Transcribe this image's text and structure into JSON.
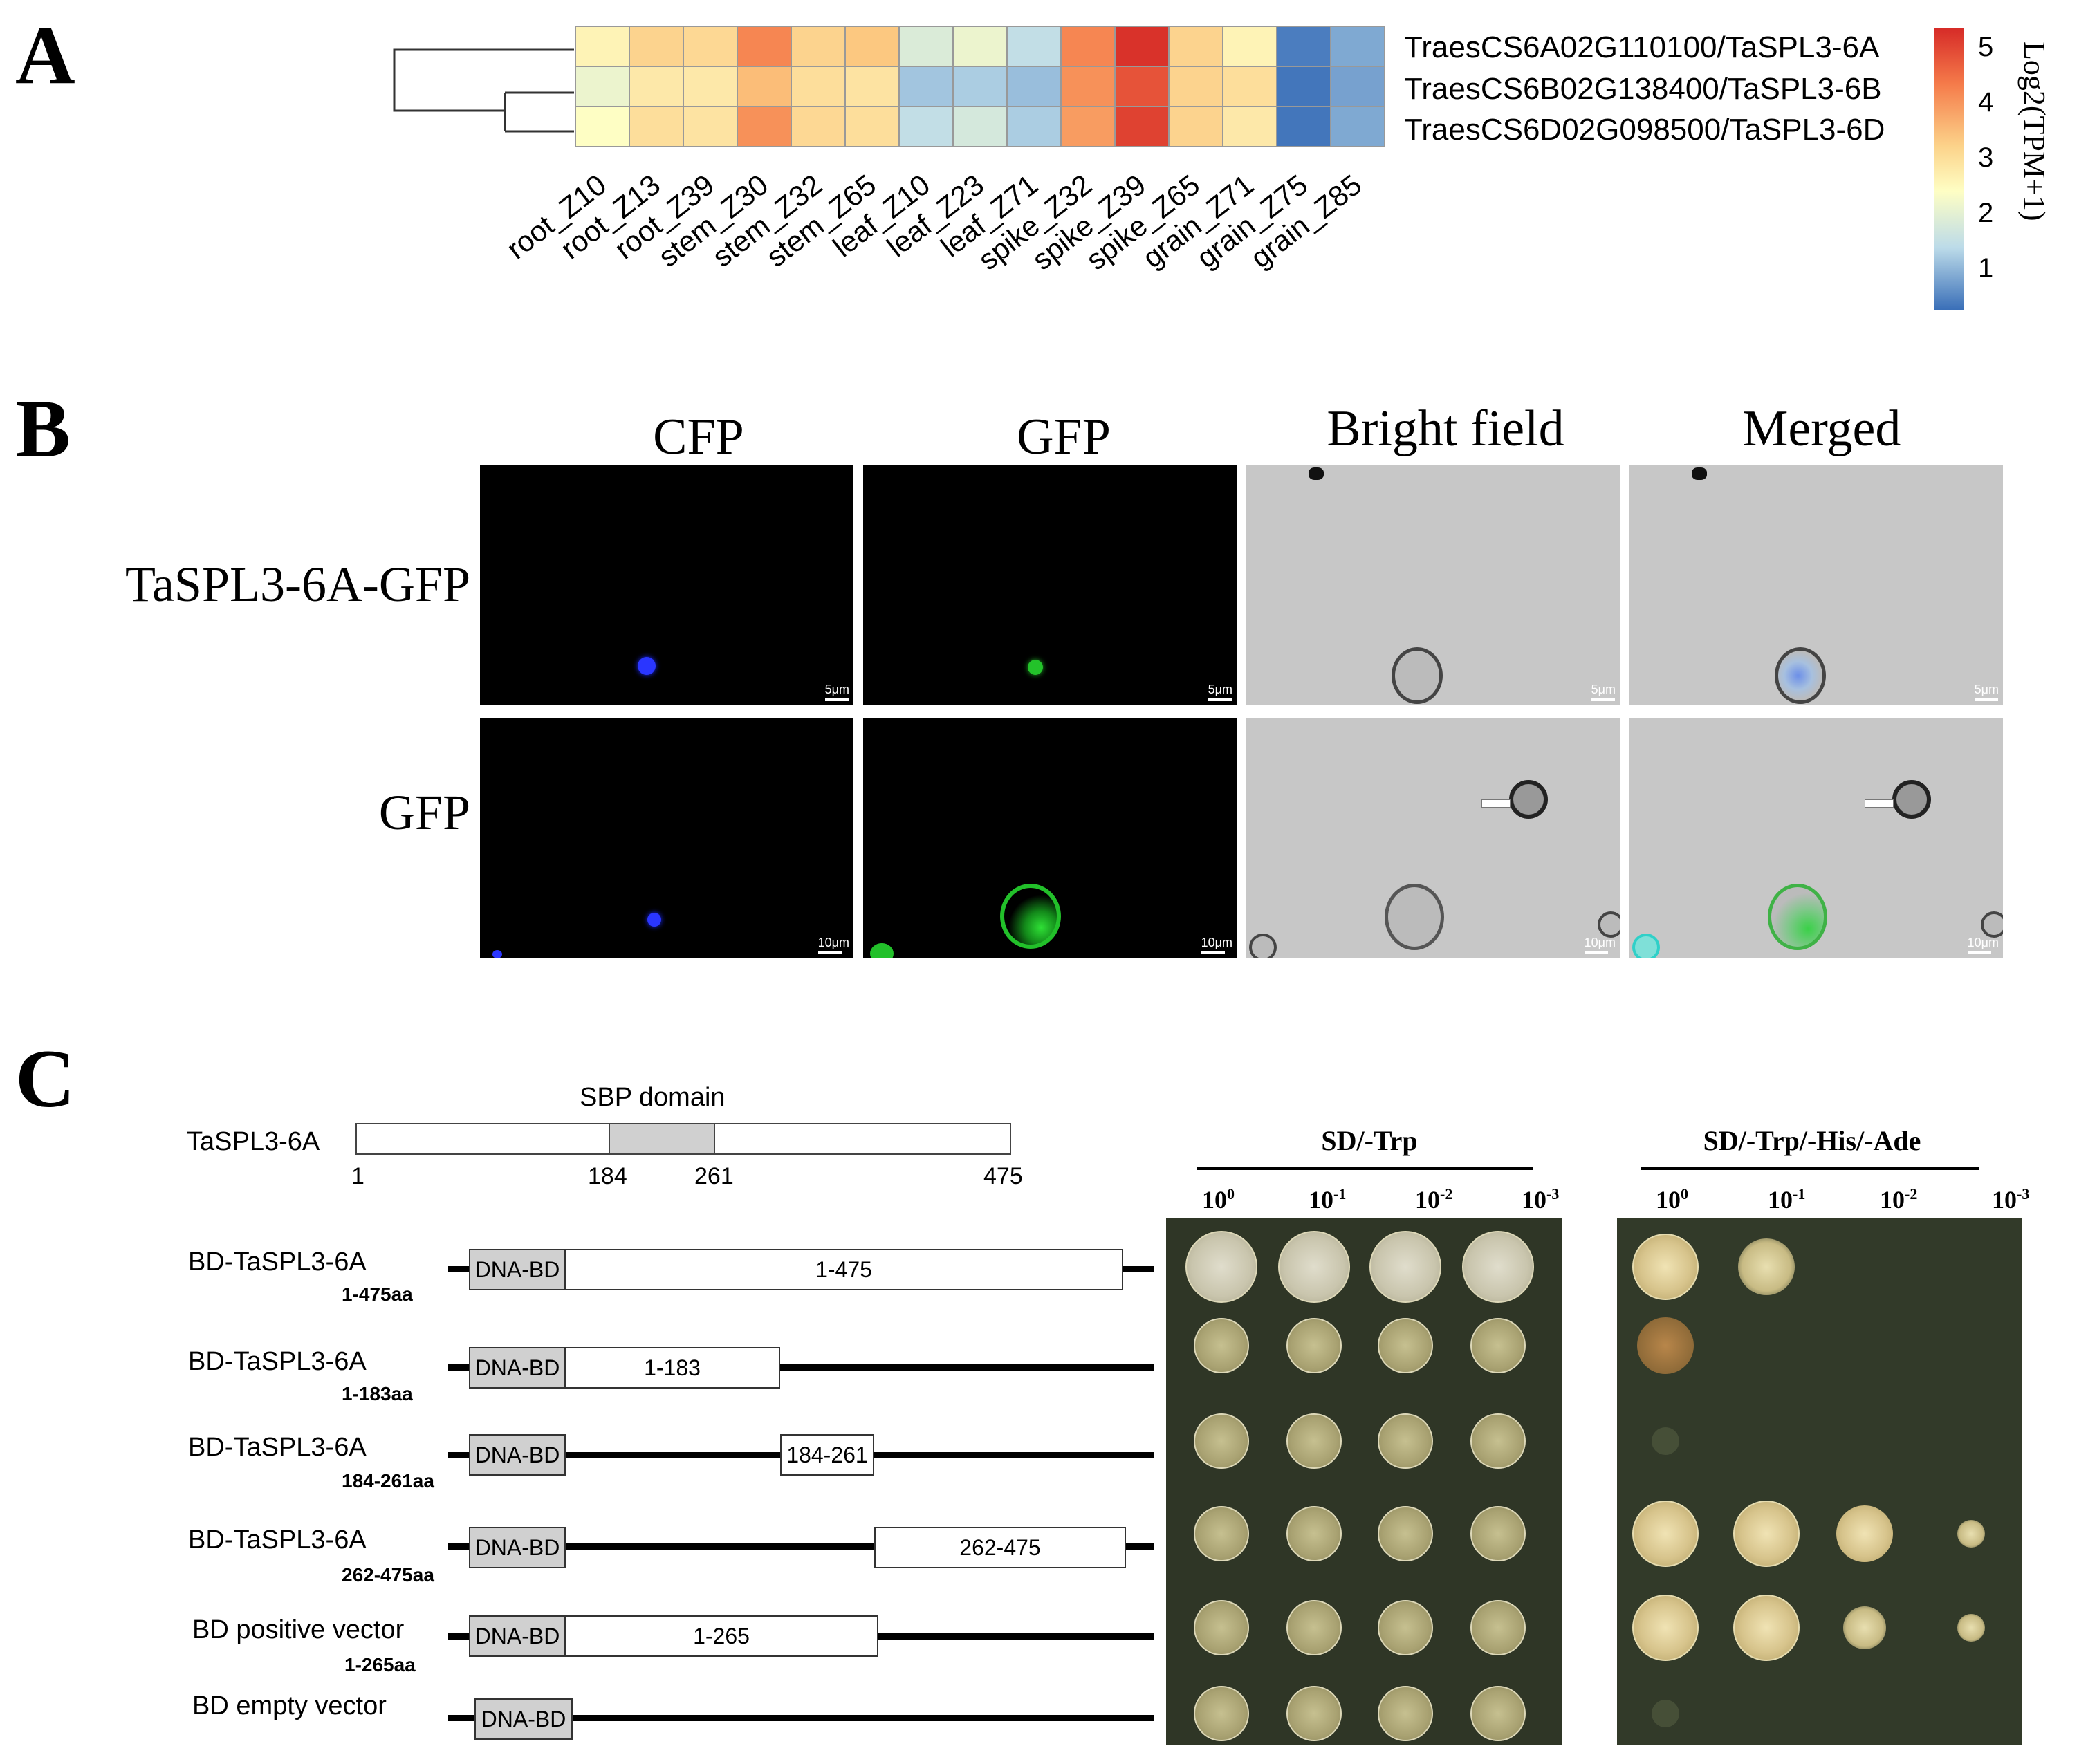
{
  "panels": {
    "a": "A",
    "b": "B",
    "c": "C"
  },
  "heatmap": {
    "columns": [
      "root_Z10",
      "root_Z13",
      "root_Z39",
      "stem_Z30",
      "stem_Z32",
      "stem_Z65",
      "leaf_Z10",
      "leaf_Z23",
      "leaf_Z71",
      "spike_Z32",
      "spike_Z39",
      "spike_Z65",
      "grain_Z71",
      "grain_Z75",
      "grain_Z85"
    ],
    "genes": [
      "TraesCS6A02G110100/TaSPL3-6A",
      "TraesCS6B02G138400/TaSPL3-6B",
      "TraesCS6D02G098500/TaSPL3-6D"
    ],
    "values": [
      [
        2.8,
        3.4,
        3.3,
        4.2,
        3.4,
        3.6,
        2.0,
        2.3,
        1.6,
        4.2,
        5.2,
        3.4,
        2.8,
        0.2,
        0.8
      ],
      [
        2.3,
        3.0,
        3.0,
        3.7,
        3.2,
        3.1,
        1.2,
        1.3,
        1.1,
        4.1,
        4.8,
        3.4,
        3.2,
        0.1,
        0.7
      ],
      [
        2.6,
        3.2,
        3.1,
        4.1,
        3.3,
        3.2,
        1.6,
        1.9,
        1.3,
        4.0,
        5.0,
        3.4,
        3.0,
        0.1,
        0.8
      ]
    ],
    "colorbar": {
      "title": "Log2(TPM+1)",
      "ticks": [
        "5",
        "4",
        "3",
        "2",
        "1"
      ],
      "low": "#3a6fb8",
      "mid": "#fefec4",
      "high": "#d62a27"
    }
  },
  "microscopy": {
    "columns": [
      "CFP",
      "GFP",
      "Bright field",
      "Merged"
    ],
    "rows": [
      {
        "label": "TaSPL3-6A-GFP",
        "scale": "5μm"
      },
      {
        "label": "GFP",
        "scale": "10μm"
      }
    ]
  },
  "domain": {
    "protein": "TaSPL3-6A",
    "domain_label": "SBP domain",
    "positions": [
      "1",
      "184",
      "261",
      "475"
    ]
  },
  "constructs": [
    {
      "name": "BD-TaSPL3-6A",
      "range": "1-475aa",
      "dbd": "DNA-BD",
      "fragment": "1-475"
    },
    {
      "name": "BD-TaSPL3-6A",
      "range": "1-183aa",
      "dbd": "DNA-BD",
      "fragment": "1-183"
    },
    {
      "name": "BD-TaSPL3-6A",
      "range": "184-261aa",
      "dbd": "DNA-BD",
      "fragment": "184-261"
    },
    {
      "name": "BD-TaSPL3-6A",
      "range": "262-475aa",
      "dbd": "DNA-BD",
      "fragment": "262-475"
    },
    {
      "name": "BD positive vector",
      "range": "1-265aa",
      "dbd": "DNA-BD",
      "fragment": "1-265"
    },
    {
      "name": "BD empty vector",
      "range": "",
      "dbd": "DNA-BD",
      "fragment": ""
    }
  ],
  "plates": {
    "left_title": "SD/-Trp",
    "right_title": "SD/-Trp/-His/-Ade",
    "dilution_base": "10",
    "dilution_exponents": [
      "0",
      "-1",
      "-2",
      "-3"
    ],
    "growth_right": [
      [
        1.0,
        0.5,
        0,
        0
      ],
      [
        0.8,
        0,
        0,
        0
      ],
      [
        0.05,
        0,
        0,
        0
      ],
      [
        1.0,
        1.0,
        0.7,
        0.15
      ],
      [
        1.0,
        1.0,
        0.4,
        0.2
      ],
      [
        0.05,
        0,
        0,
        0
      ]
    ]
  }
}
